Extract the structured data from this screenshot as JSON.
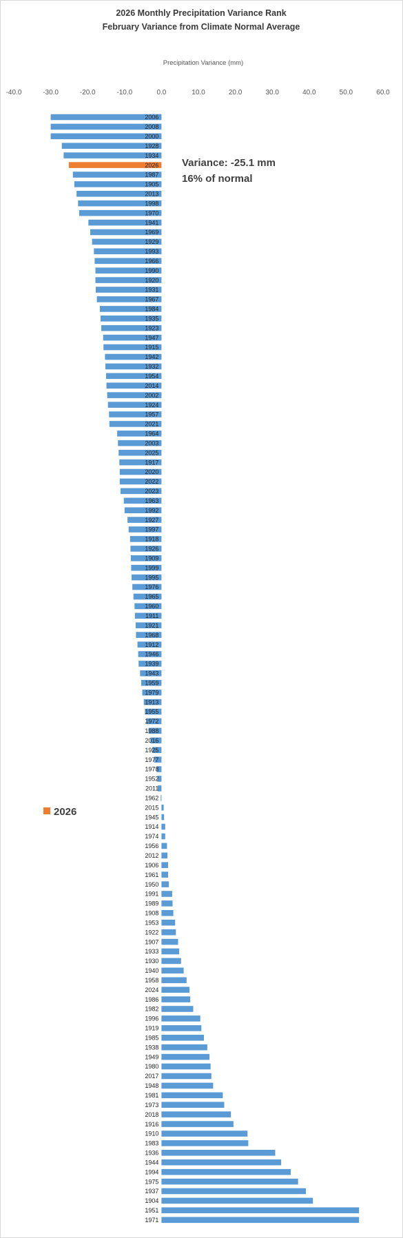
{
  "chart_data": {
    "type": "bar",
    "orientation": "horizontal",
    "title": [
      "2026 Monthly Precipitation Variance Rank",
      "February Variance from Climate Normal Average"
    ],
    "xlabel": "Precipitation Variance (mm)",
    "xlim": [
      -40,
      60
    ],
    "x_ticks": [
      "-40.0",
      "-30.0",
      "-20.0",
      "-10.0",
      "0.0",
      "10.0",
      "20.0",
      "30.0",
      "40.0",
      "50.0",
      "60.0"
    ],
    "grid": false,
    "colors": {
      "default": "#5b9bd5",
      "highlight": "#ed7d31"
    },
    "highlight_category": "2026",
    "annotation": [
      "Variance: -25.1 mm",
      "16% of normal"
    ],
    "legend": {
      "position": "left",
      "entries": [
        {
          "label": "2026",
          "color": "#ed7d31"
        }
      ]
    },
    "categories": [
      "2006",
      "2008",
      "2000",
      "1928",
      "1934",
      "2026",
      "1987",
      "1905",
      "2013",
      "1998",
      "1970",
      "1941",
      "1969",
      "1929",
      "1993",
      "1966",
      "1990",
      "1920",
      "1931",
      "1967",
      "1984",
      "1935",
      "1923",
      "1947",
      "1915",
      "1942",
      "1932",
      "1954",
      "2014",
      "2002",
      "1924",
      "1957",
      "2021",
      "1964",
      "2003",
      "2025",
      "1917",
      "2020",
      "2022",
      "2023",
      "1963",
      "1992",
      "1927",
      "1997",
      "1918",
      "1926",
      "1909",
      "1999",
      "1995",
      "1976",
      "1965",
      "1960",
      "1911",
      "1921",
      "1968",
      "1912",
      "1946",
      "1939",
      "1943",
      "1959",
      "1979",
      "1913",
      "1955",
      "1972",
      "1988",
      "2016",
      "1925",
      "1977",
      "1978",
      "1952",
      "2011",
      "1962",
      "2015",
      "1945",
      "1914",
      "1974",
      "1956",
      "2012",
      "1906",
      "1961",
      "1950",
      "1991",
      "1989",
      "1908",
      "1953",
      "1922",
      "1907",
      "1933",
      "1930",
      "1940",
      "1958",
      "2024",
      "1986",
      "1982",
      "1996",
      "1919",
      "1985",
      "1938",
      "1949",
      "1980",
      "2017",
      "1948",
      "1981",
      "1973",
      "2018",
      "1916",
      "1910",
      "1983",
      "1936",
      "1944",
      "1994",
      "1975",
      "1937",
      "1904",
      "1951",
      "1971"
    ],
    "values": [
      -30,
      -30,
      -30,
      -27,
      -26.5,
      -25.1,
      -24,
      -23.6,
      -23,
      -22.6,
      -22.3,
      -19.8,
      -19.3,
      -18.8,
      -18.3,
      -18.1,
      -17.9,
      -17.9,
      -17.8,
      -17.5,
      -16.7,
      -16.5,
      -16.3,
      -15.8,
      -15.7,
      -15.3,
      -15.2,
      -15.0,
      -14.9,
      -14.7,
      -14.5,
      -14.2,
      -14.1,
      -12.0,
      -11.8,
      -11.6,
      -11.4,
      -11.3,
      -11.3,
      -11.1,
      -10.2,
      -10.0,
      -9.2,
      -8.9,
      -8.5,
      -8.4,
      -8.3,
      -8.2,
      -8.1,
      -7.9,
      -7.6,
      -7.3,
      -7.2,
      -7.0,
      -6.9,
      -6.5,
      -6.3,
      -6.2,
      -5.8,
      -5.5,
      -5.2,
      -4.8,
      -4.5,
      -4.1,
      -3.5,
      -3.0,
      -2.5,
      -2.0,
      -1.3,
      -1.1,
      -1.0,
      -0.2,
      0.6,
      0.7,
      1.0,
      1.0,
      1.5,
      1.6,
      1.8,
      1.8,
      2.0,
      2.9,
      3.0,
      3.2,
      3.7,
      3.9,
      4.5,
      4.8,
      5.3,
      6.0,
      6.8,
      7.6,
      7.8,
      8.6,
      10.5,
      10.8,
      11.5,
      12.4,
      13.0,
      13.3,
      13.5,
      14.0,
      16.6,
      17.0,
      18.8,
      19.5,
      23.3,
      23.5,
      30.8,
      32.4,
      35.0,
      37.0,
      39.1,
      41.0,
      53.5,
      53.5
    ]
  }
}
